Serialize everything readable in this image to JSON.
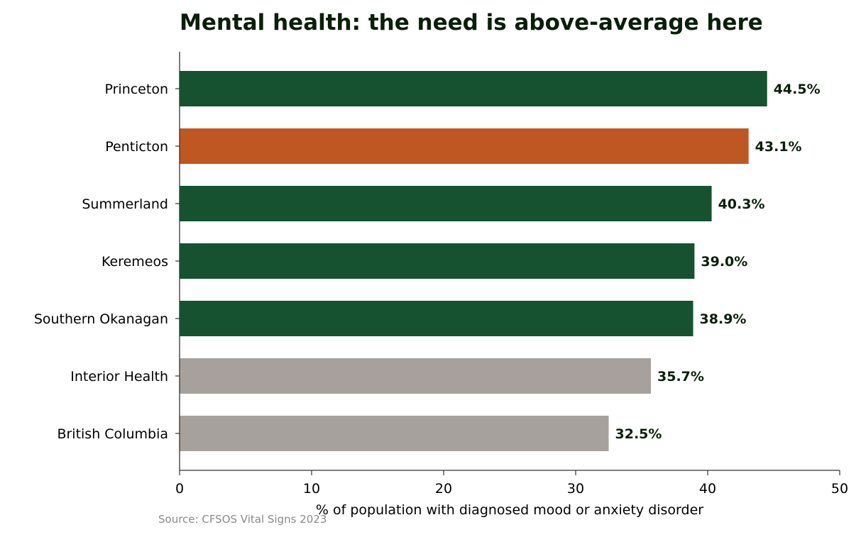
{
  "chart_data": {
    "type": "bar",
    "orientation": "horizontal",
    "title": "Mental health: the need is above-average here",
    "xlabel": "% of population with diagnosed mood or anxiety disorder",
    "ylabel": "",
    "xlim": [
      0,
      50
    ],
    "xticks": [
      "0",
      "10",
      "20",
      "30",
      "40",
      "50"
    ],
    "categories": [
      "Princeton",
      "Penticton",
      "Summerland",
      "Keremeos",
      "Southern Okanagan",
      "Interior Health",
      "British Columbia"
    ],
    "values": [
      44.5,
      43.1,
      40.3,
      39.0,
      38.9,
      35.7,
      32.5
    ],
    "value_labels": [
      "44.5%",
      "43.1%",
      "40.3%",
      "39.0%",
      "38.9%",
      "35.7%",
      "32.5%"
    ],
    "bar_colors": [
      "#165230",
      "#bf5722",
      "#165230",
      "#165230",
      "#165230",
      "#a6a19c",
      "#a6a19c"
    ],
    "grid": false,
    "legend": "none",
    "source": "Source: CFSOS Vital Signs 2023"
  },
  "colors": {
    "title": "#0a1f0a",
    "value_label": "#0a1f0a",
    "axis": "#333333",
    "source": "#8a8a8a"
  }
}
